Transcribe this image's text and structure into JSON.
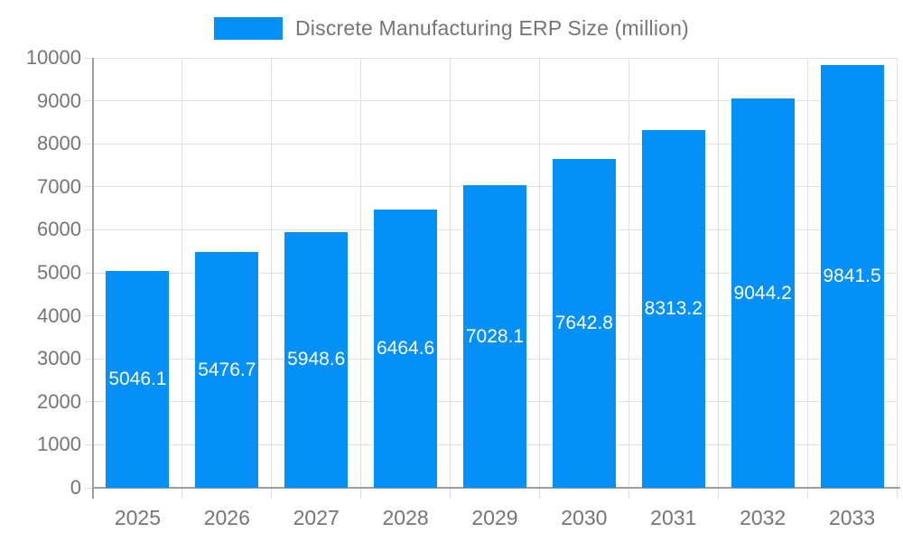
{
  "chart_data": {
    "type": "bar",
    "title": "Discrete Manufacturing ERP Size (million)",
    "categories": [
      "2025",
      "2026",
      "2027",
      "2028",
      "2029",
      "2030",
      "2031",
      "2032",
      "2033"
    ],
    "series": [
      {
        "name": "Discrete Manufacturing ERP Size (million)",
        "values": [
          5046.1,
          5476.7,
          5948.6,
          6464.6,
          7028.1,
          7642.8,
          8313.2,
          9044.2,
          9841.5
        ],
        "labels": [
          "5046.1",
          "5476.7",
          "5948.6",
          "6464.6",
          "7028.1",
          "7642.8",
          "8313.2",
          "9044.2",
          "9841.5"
        ],
        "color": "#0590f8"
      }
    ],
    "xlabel": "",
    "ylabel": "",
    "ylim": [
      0,
      10000
    ],
    "yticks": [
      0,
      1000,
      2000,
      3000,
      4000,
      5000,
      6000,
      7000,
      8000,
      9000,
      10000
    ],
    "ytick_labels": [
      "0",
      "1000",
      "2000",
      "3000",
      "4000",
      "5000",
      "6000",
      "7000",
      "8000",
      "9000",
      "10000"
    ],
    "grid": true,
    "legend_position": "top",
    "value_label_color": "#ffffff",
    "axis_text_color": "#757575",
    "grid_color": "#e0e0e0",
    "axis_line_color": "#9e9e9e"
  }
}
